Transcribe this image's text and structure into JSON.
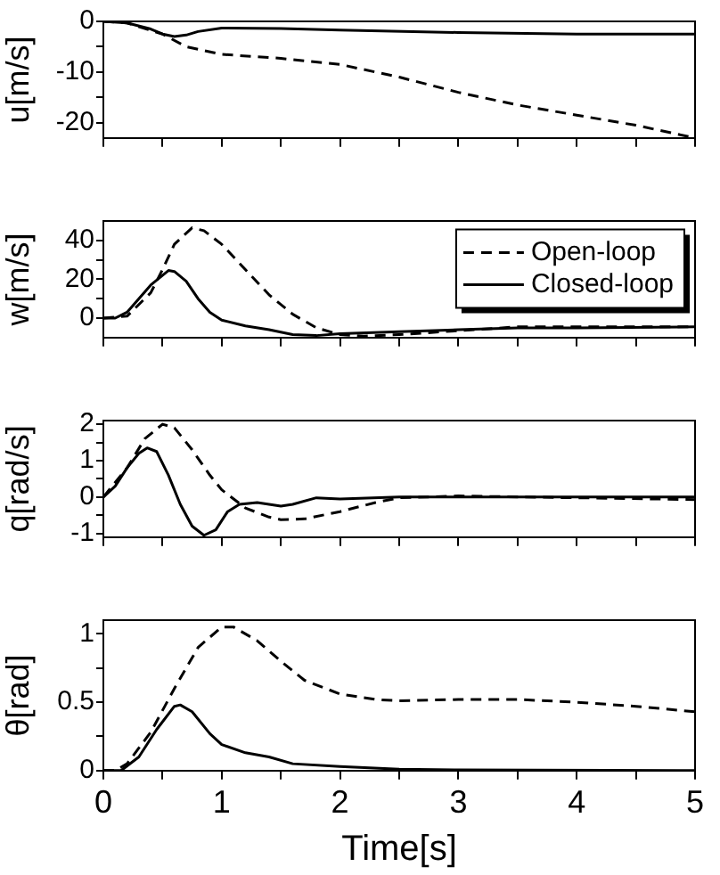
{
  "chart_data": [
    {
      "type": "line",
      "ylabel": "u[m/s]",
      "xlim": [
        0,
        5
      ],
      "ylim": [
        -23,
        0
      ],
      "tick_labels": "y",
      "grid": false,
      "legend": false,
      "xticks": [
        0,
        {
          "value": 0.5,
          "label": null
        },
        1,
        {
          "value": 1.5,
          "label": null
        },
        2,
        {
          "value": 2.5,
          "label": null
        },
        3,
        {
          "value": 3.5,
          "label": null
        },
        4,
        {
          "value": 4.5,
          "label": null
        },
        5
      ],
      "yticks": [
        -20,
        {
          "value": -15,
          "label": null
        },
        -10,
        {
          "value": -5,
          "label": null
        },
        0
      ],
      "series": [
        {
          "color": "#000000",
          "line_style": "dashed",
          "x": [
            0,
            0.2,
            0.5,
            0.7,
            1,
            1.5,
            2,
            2.5,
            3,
            3.5,
            4,
            4.5,
            5
          ],
          "values": [
            0,
            -0.3,
            -2.5,
            -5,
            -6.5,
            -7.3,
            -8.5,
            -11,
            -14,
            -16.5,
            -18.5,
            -20.5,
            -23
          ]
        },
        {
          "color": "#000000",
          "line_style": "solid",
          "x": [
            0,
            0.2,
            0.4,
            0.5,
            0.6,
            0.7,
            0.8,
            1,
            1.5,
            2,
            3,
            4,
            5
          ],
          "values": [
            0,
            -0.3,
            -1.5,
            -2.5,
            -3,
            -2.7,
            -2,
            -1.3,
            -1.4,
            -1.7,
            -2.2,
            -2.5,
            -2.5
          ]
        }
      ]
    },
    {
      "type": "line",
      "ylabel": "w[m/s]",
      "xlim": [
        0,
        5
      ],
      "ylim": [
        -10,
        50
      ],
      "tick_labels": "y",
      "grid": false,
      "legend": "right",
      "xticks": [
        0,
        {
          "value": 0.5,
          "label": null
        },
        1,
        {
          "value": 1.5,
          "label": null
        },
        2,
        {
          "value": 2.5,
          "label": null
        },
        3,
        {
          "value": 3.5,
          "label": null
        },
        4,
        {
          "value": 4.5,
          "label": null
        },
        5
      ],
      "yticks": [
        0,
        {
          "value": 10,
          "label": null
        },
        20,
        {
          "value": 30,
          "label": null
        },
        40
      ],
      "series": [
        {
          "name": "Open-loop",
          "color": "#000000",
          "line_style": "dashed",
          "x": [
            0,
            0.2,
            0.4,
            0.5,
            0.6,
            0.75,
            0.85,
            1,
            1.2,
            1.4,
            1.6,
            1.8,
            2,
            2.2,
            2.5,
            3,
            3.5,
            4,
            5
          ],
          "values": [
            0,
            1,
            13,
            25,
            38,
            46.5,
            45,
            38,
            25,
            12,
            2,
            -5,
            -8.5,
            -9.3,
            -8.5,
            -6.5,
            -4.5,
            -4.5,
            -4.5
          ]
        },
        {
          "name": "Closed-loop",
          "color": "#000000",
          "line_style": "solid",
          "x": [
            0,
            0.1,
            0.2,
            0.4,
            0.55,
            0.6,
            0.7,
            0.8,
            0.9,
            1,
            1.2,
            1.4,
            1.6,
            1.8,
            2,
            2.5,
            3,
            3.5,
            4,
            5
          ],
          "values": [
            0,
            0,
            3,
            17,
            24.5,
            24,
            19,
            10,
            3,
            -1,
            -4,
            -6,
            -8.5,
            -9,
            -8,
            -7,
            -6,
            -5,
            -5,
            -4.5
          ]
        }
      ]
    },
    {
      "type": "line",
      "ylabel": "q[rad/s]",
      "xlim": [
        0,
        5
      ],
      "ylim": [
        -1.1,
        2.1
      ],
      "tick_labels": "y",
      "grid": false,
      "legend": false,
      "xticks": [
        0,
        {
          "value": 0.5,
          "label": null
        },
        1,
        {
          "value": 1.5,
          "label": null
        },
        2,
        {
          "value": 2.5,
          "label": null
        },
        3,
        {
          "value": 3.5,
          "label": null
        },
        4,
        {
          "value": 4.5,
          "label": null
        },
        5
      ],
      "yticks": [
        -1,
        {
          "value": -0.5,
          "label": null
        },
        0,
        {
          "value": 0.5,
          "label": null
        },
        1,
        {
          "value": 1.5,
          "label": null
        },
        2
      ],
      "series": [
        {
          "color": "#000000",
          "line_style": "dashed",
          "x": [
            0,
            0.2,
            0.35,
            0.5,
            0.6,
            0.75,
            0.9,
            1,
            1.2,
            1.4,
            1.5,
            1.7,
            2,
            2.3,
            2.5,
            3,
            4,
            5
          ],
          "values": [
            0,
            0.8,
            1.6,
            2,
            1.9,
            1.3,
            0.6,
            0.2,
            -0.3,
            -0.55,
            -0.62,
            -0.6,
            -0.4,
            -0.15,
            -0.02,
            0.03,
            -0.02,
            -0.07
          ]
        },
        {
          "color": "#000000",
          "line_style": "solid",
          "x": [
            0,
            0.1,
            0.2,
            0.3,
            0.37,
            0.45,
            0.55,
            0.65,
            0.75,
            0.85,
            0.95,
            1.05,
            1.15,
            1.3,
            1.5,
            1.6,
            1.8,
            2,
            2.5,
            5
          ],
          "values": [
            0,
            0.3,
            0.8,
            1.2,
            1.35,
            1.25,
            0.6,
            -0.2,
            -0.8,
            -1.05,
            -0.9,
            -0.4,
            -0.2,
            -0.15,
            -0.25,
            -0.2,
            -0.02,
            -0.05,
            0,
            0
          ]
        }
      ]
    },
    {
      "type": "line",
      "ylabel": "θ[rad]",
      "xlabel": "Time[s]",
      "xlim": [
        0,
        5
      ],
      "ylim": [
        0,
        1.1
      ],
      "grid": false,
      "legend": false,
      "xticks": [
        0,
        {
          "value": 0.5,
          "label": null
        },
        1,
        {
          "value": 1.5,
          "label": null
        },
        2,
        {
          "value": 2.5,
          "label": null
        },
        3,
        {
          "value": 3.5,
          "label": null
        },
        4,
        {
          "value": 4.5,
          "label": null
        },
        5
      ],
      "yticks": [
        0,
        {
          "value": 0.25,
          "label": null
        },
        0.5,
        {
          "value": 0.75,
          "label": null
        },
        1
      ],
      "series": [
        {
          "color": "#000000",
          "line_style": "dashed",
          "x": [
            0,
            0.1,
            0.2,
            0.4,
            0.6,
            0.8,
            1,
            1.1,
            1.3,
            1.5,
            1.7,
            2,
            2.3,
            2.5,
            3,
            3.5,
            4,
            4.5,
            5
          ],
          "values": [
            0,
            0,
            0.05,
            0.28,
            0.6,
            0.9,
            1.05,
            1.05,
            0.95,
            0.8,
            0.66,
            0.56,
            0.52,
            0.51,
            0.52,
            0.52,
            0.5,
            0.47,
            0.43
          ]
        },
        {
          "color": "#000000",
          "line_style": "solid",
          "x": [
            0,
            0.15,
            0.3,
            0.45,
            0.6,
            0.65,
            0.75,
            0.9,
            1,
            1.2,
            1.4,
            1.6,
            2,
            2.5,
            3,
            5
          ],
          "values": [
            0,
            0,
            0.1,
            0.3,
            0.47,
            0.48,
            0.43,
            0.27,
            0.19,
            0.13,
            0.1,
            0.05,
            0.03,
            0.01,
            0.005,
            0
          ]
        }
      ]
    }
  ]
}
